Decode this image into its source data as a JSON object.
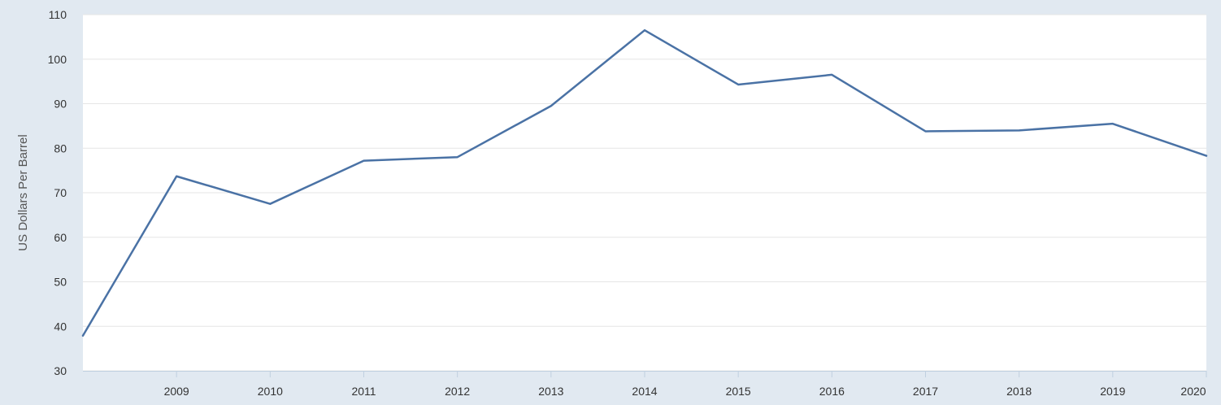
{
  "chart_data": {
    "type": "line",
    "title": "",
    "xlabel": "",
    "ylabel": "US Dollars Per Barrel",
    "xlim": [
      2008,
      2020
    ],
    "ylim": [
      30,
      110
    ],
    "grid": true,
    "x_ticks": [
      "2009",
      "2010",
      "2011",
      "2012",
      "2013",
      "2014",
      "2015",
      "2016",
      "2017",
      "2018",
      "2019",
      "2020"
    ],
    "y_ticks": [
      30,
      40,
      50,
      60,
      70,
      80,
      90,
      100,
      110
    ],
    "x": [
      2008,
      2009,
      2010,
      2011,
      2012,
      2013,
      2014,
      2015,
      2016,
      2017,
      2018,
      2019,
      2020
    ],
    "series": [
      {
        "color": "#4a72a5",
        "values": [
          37.9,
          73.7,
          67.5,
          77.2,
          78.0,
          89.5,
          106.5,
          94.3,
          96.5,
          83.8,
          84.0,
          85.5,
          78.3
        ]
      }
    ],
    "plot_background": "#ffffff",
    "page_background": "#e1e9f1",
    "grid_color": "#e6e6e6"
  }
}
